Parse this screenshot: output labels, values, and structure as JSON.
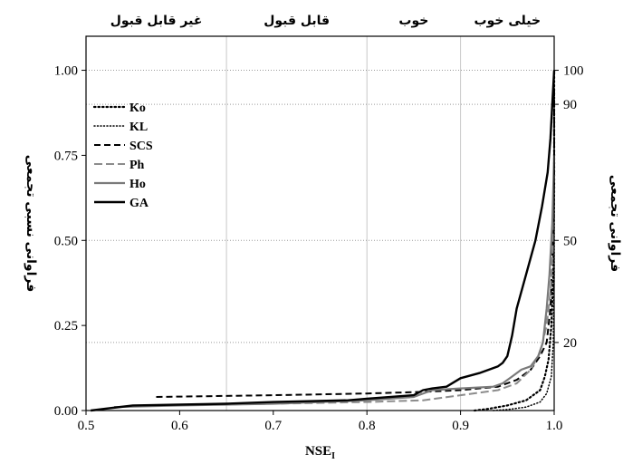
{
  "chart_data": {
    "type": "line",
    "xlabel": "NSE",
    "xlabel_sub": "I",
    "ylabel_left": "فراوانی نسبی تجمعی",
    "ylabel_right": "فراوانی تجمعی",
    "xlim": [
      0.5,
      1.0
    ],
    "ylim": [
      0,
      1.1
    ],
    "x_ticks": [
      {
        "value": 0.5,
        "label": "0.5"
      },
      {
        "value": 0.6,
        "label": "0.6"
      },
      {
        "value": 0.7,
        "label": "0.7"
      },
      {
        "value": 0.8,
        "label": "0.8"
      },
      {
        "value": 0.9,
        "label": "0.9"
      },
      {
        "value": 1.0,
        "label": "1.0"
      }
    ],
    "y_ticks": [
      {
        "value": 0.0,
        "label": "0.00"
      },
      {
        "value": 0.25,
        "label": "0.25"
      },
      {
        "value": 0.5,
        "label": "0.50"
      },
      {
        "value": 0.75,
        "label": "0.75"
      },
      {
        "value": 1.0,
        "label": "1.00"
      }
    ],
    "right_ticks": [
      {
        "value": 1.0,
        "label": "100"
      },
      {
        "value": 0.9,
        "label": "90"
      },
      {
        "value": 0.5,
        "label": "50"
      },
      {
        "value": 0.2,
        "label": "20"
      }
    ],
    "vertical_gridlines": [
      0.65,
      0.8,
      0.9
    ],
    "horizontal_gridlines": [
      0.2,
      0.5,
      0.9,
      1.0
    ],
    "category_bands": [
      {
        "label": "غیر قابل قبول",
        "from": 0.5,
        "to": 0.65
      },
      {
        "label": "قابل قبول",
        "from": 0.65,
        "to": 0.8
      },
      {
        "label": "خوب",
        "from": 0.8,
        "to": 0.9
      },
      {
        "label": "خیلی خوب",
        "from": 0.9,
        "to": 1.0
      }
    ],
    "legend_position": "top-left",
    "series": [
      {
        "name": "Ko",
        "style": "dotted-heavy",
        "color": "#000000",
        "points": [
          [
            0.915,
            0.0
          ],
          [
            0.93,
            0.005
          ],
          [
            0.95,
            0.015
          ],
          [
            0.97,
            0.03
          ],
          [
            0.985,
            0.06
          ],
          [
            0.99,
            0.1
          ],
          [
            0.994,
            0.15
          ],
          [
            0.997,
            0.25
          ],
          [
            0.999,
            0.4
          ],
          [
            1.0,
            0.65
          ],
          [
            1.0,
            1.0
          ]
        ]
      },
      {
        "name": "KL",
        "style": "dotted",
        "color": "#000000",
        "points": [
          [
            0.935,
            0.0
          ],
          [
            0.95,
            0.003
          ],
          [
            0.97,
            0.01
          ],
          [
            0.985,
            0.025
          ],
          [
            0.992,
            0.05
          ],
          [
            0.997,
            0.1
          ],
          [
            0.999,
            0.2
          ],
          [
            1.0,
            0.4
          ],
          [
            1.0,
            0.85
          ]
        ]
      },
      {
        "name": "SCS",
        "style": "dashed",
        "color": "#000000",
        "points": [
          [
            0.575,
            0.04
          ],
          [
            0.7,
            0.045
          ],
          [
            0.8,
            0.05
          ],
          [
            0.86,
            0.055
          ],
          [
            0.9,
            0.06
          ],
          [
            0.94,
            0.07
          ],
          [
            0.96,
            0.09
          ],
          [
            0.975,
            0.12
          ],
          [
            0.985,
            0.16
          ],
          [
            0.992,
            0.2
          ],
          [
            0.996,
            0.3
          ],
          [
            0.998,
            0.45
          ],
          [
            1.0,
            0.7
          ],
          [
            1.0,
            0.95
          ]
        ]
      },
      {
        "name": "Ph",
        "style": "dashed-gray",
        "color": "#8c8c8c",
        "points": [
          [
            0.57,
            0.015
          ],
          [
            0.7,
            0.02
          ],
          [
            0.8,
            0.025
          ],
          [
            0.86,
            0.03
          ],
          [
            0.9,
            0.045
          ],
          [
            0.94,
            0.06
          ],
          [
            0.96,
            0.08
          ],
          [
            0.975,
            0.12
          ],
          [
            0.985,
            0.17
          ],
          [
            0.992,
            0.25
          ],
          [
            0.996,
            0.35
          ],
          [
            0.999,
            0.5
          ],
          [
            1.0,
            0.7
          ]
        ]
      },
      {
        "name": "Ho",
        "style": "solid-gray",
        "color": "#7a7a7a",
        "points": [
          [
            0.53,
            0.01
          ],
          [
            0.6,
            0.015
          ],
          [
            0.7,
            0.02
          ],
          [
            0.8,
            0.03
          ],
          [
            0.85,
            0.04
          ],
          [
            0.87,
            0.06
          ],
          [
            0.9,
            0.065
          ],
          [
            0.935,
            0.07
          ],
          [
            0.945,
            0.08
          ],
          [
            0.955,
            0.1
          ],
          [
            0.965,
            0.12
          ],
          [
            0.975,
            0.13
          ],
          [
            0.983,
            0.16
          ],
          [
            0.988,
            0.2
          ],
          [
            0.992,
            0.3
          ],
          [
            0.995,
            0.4
          ],
          [
            0.998,
            0.55
          ],
          [
            1.0,
            0.75
          ]
        ]
      },
      {
        "name": "GA",
        "style": "solid-black",
        "color": "#000000",
        "points": [
          [
            0.505,
            0.0
          ],
          [
            0.52,
            0.005
          ],
          [
            0.55,
            0.015
          ],
          [
            0.65,
            0.02
          ],
          [
            0.7,
            0.025
          ],
          [
            0.78,
            0.03
          ],
          [
            0.8,
            0.035
          ],
          [
            0.85,
            0.045
          ],
          [
            0.86,
            0.06
          ],
          [
            0.87,
            0.065
          ],
          [
            0.885,
            0.07
          ],
          [
            0.9,
            0.095
          ],
          [
            0.92,
            0.11
          ],
          [
            0.94,
            0.13
          ],
          [
            0.945,
            0.14
          ],
          [
            0.95,
            0.16
          ],
          [
            0.955,
            0.22
          ],
          [
            0.96,
            0.3
          ],
          [
            0.97,
            0.4
          ],
          [
            0.98,
            0.5
          ],
          [
            0.987,
            0.6
          ],
          [
            0.993,
            0.7
          ],
          [
            0.996,
            0.8
          ],
          [
            0.998,
            0.9
          ],
          [
            1.0,
            1.0
          ]
        ]
      }
    ]
  }
}
